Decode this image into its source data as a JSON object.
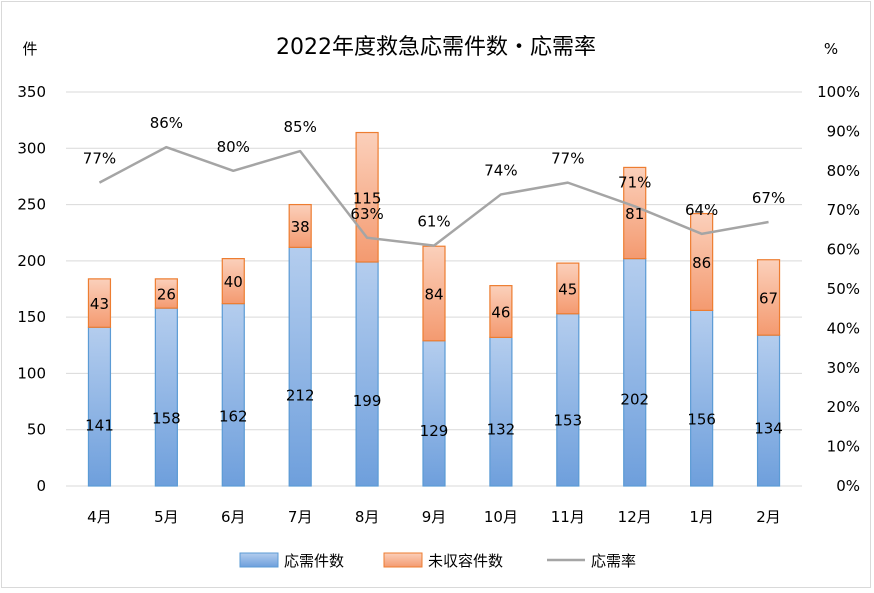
{
  "chart_data": {
    "type": "bar",
    "stacked": true,
    "title": "2022年度救急応需件数・応需率",
    "ylabel_left": "件",
    "ylabel_right": "%",
    "categories": [
      "4月",
      "5月",
      "6月",
      "7月",
      "8月",
      "9月",
      "10月",
      "11月",
      "12月",
      "1月",
      "2月"
    ],
    "series": [
      {
        "name": "応需件数",
        "kind": "bar",
        "axis": "left",
        "color": "#8fb4e3",
        "values": [
          141,
          158,
          162,
          212,
          199,
          129,
          132,
          153,
          202,
          156,
          134
        ]
      },
      {
        "name": "未収容件数",
        "kind": "bar",
        "axis": "left",
        "color": "#f7ad8a",
        "values": [
          43,
          26,
          40,
          38,
          115,
          84,
          46,
          45,
          81,
          86,
          67
        ]
      },
      {
        "name": "応需率",
        "kind": "line",
        "axis": "right",
        "color": "#a5a5a5",
        "values": [
          77,
          86,
          80,
          85,
          63,
          61,
          74,
          77,
          71,
          64,
          67
        ]
      }
    ],
    "ylim_left": [
      0,
      350
    ],
    "yticks_left": [
      "0",
      "50",
      "100",
      "150",
      "200",
      "250",
      "300",
      "350"
    ],
    "ylim_right": [
      0,
      100
    ],
    "yticks_right": [
      "0%",
      "10%",
      "20%",
      "30%",
      "40%",
      "50%",
      "60%",
      "70%",
      "80%",
      "90%",
      "100%"
    ],
    "pct_labels": [
      "77%",
      "86%",
      "80%",
      "85%",
      "63%",
      "61%",
      "74%",
      "77%",
      "71%",
      "64%",
      "67%"
    ],
    "grid": true,
    "legend_position": "bottom"
  }
}
